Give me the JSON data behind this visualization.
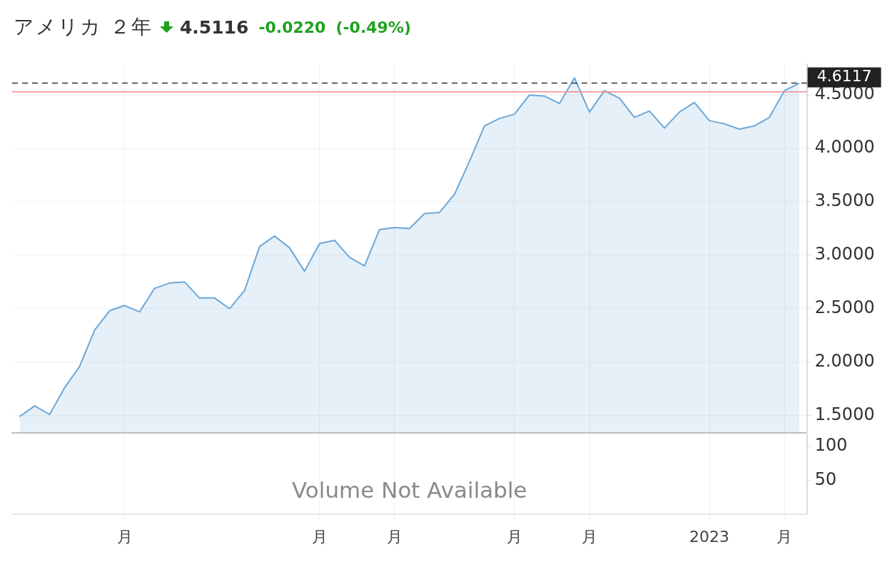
{
  "chart_data": [
    {
      "type": "area",
      "title": "アメリカ ２年",
      "subtitle": "4.5116",
      "annotations": [
        "-0.0220",
        "(-0.49%)"
      ],
      "categories": [
        null,
        null,
        null,
        null,
        null,
        null,
        null,
        null,
        null,
        null,
        null,
        null,
        null,
        null,
        null,
        null,
        null,
        null,
        null,
        null,
        null,
        null,
        null,
        null,
        null,
        null,
        null,
        null,
        null,
        null,
        null,
        null,
        null,
        null,
        null,
        null,
        null,
        null,
        null,
        null,
        null,
        null,
        null,
        null,
        null,
        null,
        null,
        null,
        null,
        null,
        null,
        null,
        null
      ],
      "values": [
        1.49,
        1.59,
        1.51,
        1.76,
        1.96,
        2.3,
        2.48,
        2.53,
        2.47,
        2.69,
        2.74,
        2.75,
        2.6,
        2.6,
        2.5,
        2.67,
        3.08,
        3.18,
        3.07,
        2.85,
        3.11,
        3.14,
        2.98,
        2.9,
        3.24,
        3.26,
        3.25,
        3.39,
        3.4,
        3.57,
        3.88,
        4.21,
        4.28,
        4.32,
        4.5,
        4.49,
        4.42,
        4.66,
        4.34,
        4.54,
        4.47,
        4.29,
        4.35,
        4.19,
        4.34,
        4.43,
        4.26,
        4.23,
        4.18,
        4.21,
        4.29,
        4.54,
        4.61
      ],
      "color": "#6ca7d8",
      "ylim": [
        1.34,
        4.79
      ],
      "yticks": [
        {
          "value": 1.5,
          "label": "1.5000"
        },
        {
          "value": 2,
          "label": "2.0000"
        },
        {
          "value": 2.5,
          "label": "2.5000"
        },
        {
          "value": 3,
          "label": "3.0000"
        },
        {
          "value": 3.5,
          "label": "3.5000"
        },
        {
          "value": 4,
          "label": "4.0000"
        },
        {
          "value": 4.5,
          "label": "4.5000"
        }
      ],
      "ref_lines": [
        {
          "axis": "y",
          "value": 4.6117,
          "label": "4.6117",
          "color": "#333333",
          "line_style": "dashed"
        },
        {
          "axis": "y",
          "value": 4.53,
          "color": "#f08a8a"
        }
      ],
      "grid": true,
      "legend": false,
      "marker": "none",
      "tick_labels": "y"
    },
    {
      "type": "bar",
      "annotations": [
        "Volume Not Available"
      ],
      "categories": [
        null,
        null,
        null,
        null,
        null,
        null,
        null,
        "月",
        null,
        null,
        null,
        null,
        null,
        null,
        null,
        null,
        null,
        null,
        null,
        null,
        "月",
        null,
        null,
        null,
        null,
        "月",
        null,
        null,
        null,
        null,
        null,
        null,
        null,
        "月",
        null,
        null,
        null,
        null,
        "月",
        null,
        null,
        null,
        null,
        null,
        null,
        null,
        "2023",
        null,
        null,
        null,
        null,
        "月",
        null
      ],
      "values": [
        null,
        null,
        null,
        null,
        null,
        null,
        null,
        null,
        null,
        null,
        null,
        null,
        null,
        null,
        null,
        null,
        null,
        null,
        null,
        null,
        null,
        null,
        null,
        null,
        null,
        null,
        null,
        null,
        null,
        null,
        null,
        null,
        null,
        null,
        null,
        null,
        null,
        null,
        null,
        null,
        null,
        null,
        null,
        null,
        null,
        null,
        null,
        null,
        null,
        null,
        null,
        null,
        null
      ],
      "ylim": [
        0,
        119
      ],
      "yticks": [
        50,
        100
      ],
      "grid": "x",
      "legend": false
    }
  ]
}
